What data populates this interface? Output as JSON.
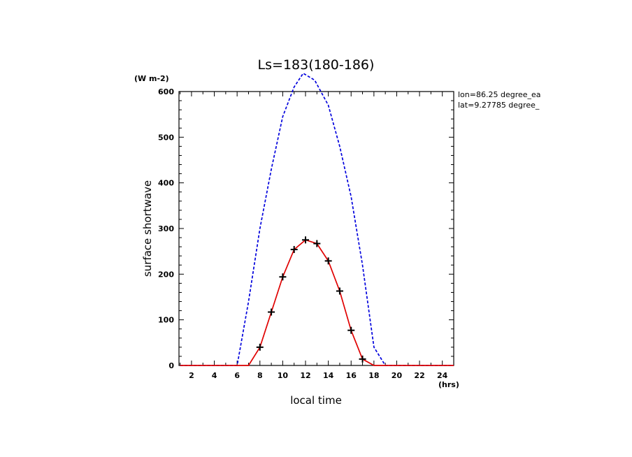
{
  "chart_data": {
    "type": "line",
    "title": "Ls=183(180-186)",
    "xlabel": "local time",
    "ylabel": "surface shortwave",
    "x_unit": "(hrs)",
    "y_unit": "(W m-2)",
    "xlim": [
      0.9,
      25
    ],
    "ylim": [
      0,
      600
    ],
    "x_ticks": [
      2,
      4,
      6,
      8,
      10,
      12,
      14,
      16,
      18,
      20,
      22,
      24
    ],
    "y_ticks": [
      0,
      100,
      200,
      300,
      400,
      500,
      600
    ],
    "grid": false,
    "annotations": [
      "lon=86.25 degree_ea",
      "lat=9.27785 degree_"
    ],
    "series": [
      {
        "style": "dashed",
        "color": "#0000dd",
        "x": [
          1,
          2,
          3,
          4,
          5,
          6,
          7,
          8,
          9,
          10,
          11,
          11.8,
          12.8,
          14,
          15,
          16,
          17,
          18,
          19,
          20,
          21,
          22,
          23,
          24,
          25
        ],
        "y": [
          0,
          0,
          0,
          0,
          0,
          0,
          140,
          300,
          430,
          545,
          610,
          640,
          625,
          570,
          480,
          370,
          220,
          40,
          0,
          0,
          0,
          0,
          0,
          0,
          0
        ]
      },
      {
        "style": "solid",
        "color": "#e00000",
        "marker": "plus",
        "x": [
          1,
          2,
          3,
          4,
          5,
          6,
          7,
          8,
          9,
          10,
          11,
          12,
          13,
          14,
          15,
          16,
          17,
          18,
          19,
          20,
          21,
          22,
          23,
          24,
          25
        ],
        "y": [
          0,
          0,
          0,
          0,
          0,
          0,
          0,
          40,
          117,
          194,
          254,
          275,
          267,
          229,
          163,
          77,
          14,
          0,
          0,
          0,
          0,
          0,
          0,
          0,
          0
        ]
      }
    ]
  }
}
